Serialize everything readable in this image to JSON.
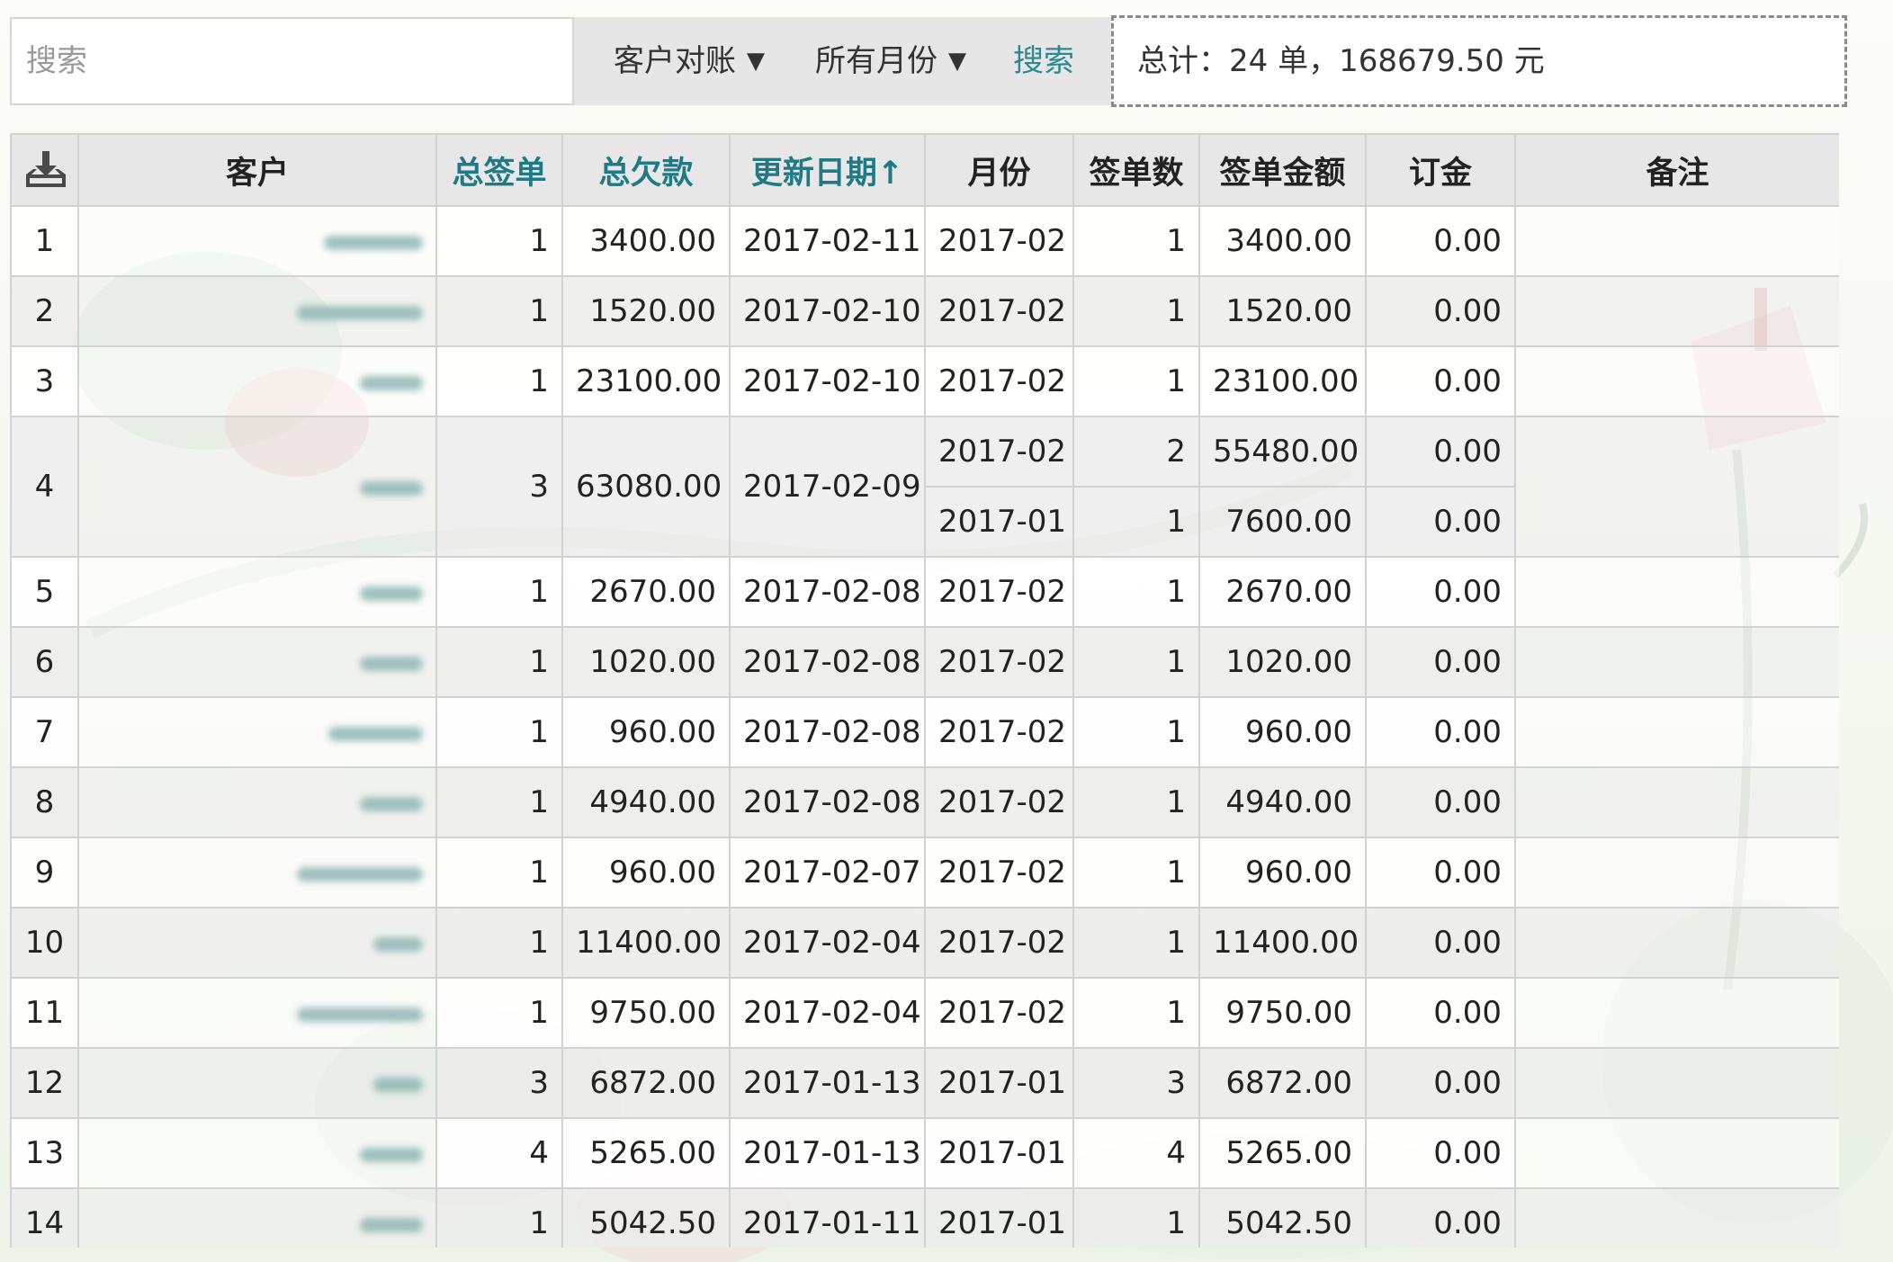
{
  "search": {
    "placeholder": "搜索",
    "button_label": "搜索"
  },
  "filters": {
    "type_label": "客户对账",
    "month_label": "所有月份",
    "arrow": "▼"
  },
  "summary": {
    "text": "总计：24 单，168679.50 元"
  },
  "colors": {
    "accent": "#1f7a85",
    "header_bg": "#e7e7e7",
    "row_alt": "#ececec"
  },
  "table": {
    "download_icon": "download-icon",
    "columns": [
      "客户",
      "总签单",
      "总欠款",
      "更新日期↑",
      "月份",
      "签单数",
      "签单金额",
      "订金",
      "备注"
    ],
    "rows": [
      {
        "idx": "1",
        "customer": "",
        "total_orders": "1",
        "total_debt": "3400.00",
        "updated": "2017-02-11",
        "months": [
          {
            "month": "2017-02",
            "orders": "1",
            "amount": "3400.00",
            "deposit": "0.00"
          }
        ],
        "note": ""
      },
      {
        "idx": "2",
        "customer": "",
        "total_orders": "1",
        "total_debt": "1520.00",
        "updated": "2017-02-10",
        "months": [
          {
            "month": "2017-02",
            "orders": "1",
            "amount": "1520.00",
            "deposit": "0.00"
          }
        ],
        "note": ""
      },
      {
        "idx": "3",
        "customer": "",
        "total_orders": "1",
        "total_debt": "23100.00",
        "updated": "2017-02-10",
        "months": [
          {
            "month": "2017-02",
            "orders": "1",
            "amount": "23100.00",
            "deposit": "0.00"
          }
        ],
        "note": ""
      },
      {
        "idx": "4",
        "customer": "",
        "total_orders": "3",
        "total_debt": "63080.00",
        "updated": "2017-02-09",
        "months": [
          {
            "month": "2017-02",
            "orders": "2",
            "amount": "55480.00",
            "deposit": "0.00"
          },
          {
            "month": "2017-01",
            "orders": "1",
            "amount": "7600.00",
            "deposit": "0.00"
          }
        ],
        "note": ""
      },
      {
        "idx": "5",
        "customer": "",
        "total_orders": "1",
        "total_debt": "2670.00",
        "updated": "2017-02-08",
        "months": [
          {
            "month": "2017-02",
            "orders": "1",
            "amount": "2670.00",
            "deposit": "0.00"
          }
        ],
        "note": ""
      },
      {
        "idx": "6",
        "customer": "",
        "total_orders": "1",
        "total_debt": "1020.00",
        "updated": "2017-02-08",
        "months": [
          {
            "month": "2017-02",
            "orders": "1",
            "amount": "1020.00",
            "deposit": "0.00"
          }
        ],
        "note": ""
      },
      {
        "idx": "7",
        "customer": "",
        "total_orders": "1",
        "total_debt": "960.00",
        "updated": "2017-02-08",
        "months": [
          {
            "month": "2017-02",
            "orders": "1",
            "amount": "960.00",
            "deposit": "0.00"
          }
        ],
        "note": ""
      },
      {
        "idx": "8",
        "customer": "",
        "total_orders": "1",
        "total_debt": "4940.00",
        "updated": "2017-02-08",
        "months": [
          {
            "month": "2017-02",
            "orders": "1",
            "amount": "4940.00",
            "deposit": "0.00"
          }
        ],
        "note": ""
      },
      {
        "idx": "9",
        "customer": "",
        "total_orders": "1",
        "total_debt": "960.00",
        "updated": "2017-02-07",
        "months": [
          {
            "month": "2017-02",
            "orders": "1",
            "amount": "960.00",
            "deposit": "0.00"
          }
        ],
        "note": ""
      },
      {
        "idx": "10",
        "customer": "",
        "total_orders": "1",
        "total_debt": "11400.00",
        "updated": "2017-02-04",
        "months": [
          {
            "month": "2017-02",
            "orders": "1",
            "amount": "11400.00",
            "deposit": "0.00"
          }
        ],
        "note": ""
      },
      {
        "idx": "11",
        "customer": "",
        "total_orders": "1",
        "total_debt": "9750.00",
        "updated": "2017-02-04",
        "months": [
          {
            "month": "2017-02",
            "orders": "1",
            "amount": "9750.00",
            "deposit": "0.00"
          }
        ],
        "note": ""
      },
      {
        "idx": "12",
        "customer": "",
        "total_orders": "3",
        "total_debt": "6872.00",
        "updated": "2017-01-13",
        "months": [
          {
            "month": "2017-01",
            "orders": "3",
            "amount": "6872.00",
            "deposit": "0.00"
          }
        ],
        "note": ""
      },
      {
        "idx": "13",
        "customer": "",
        "total_orders": "4",
        "total_debt": "5265.00",
        "updated": "2017-01-13",
        "months": [
          {
            "month": "2017-01",
            "orders": "4",
            "amount": "5265.00",
            "deposit": "0.00"
          }
        ],
        "note": ""
      },
      {
        "idx": "14",
        "customer": "",
        "total_orders": "1",
        "total_debt": "5042.50",
        "updated": "2017-01-11",
        "months": [
          {
            "month": "2017-01",
            "orders": "1",
            "amount": "5042.50",
            "deposit": "0.00"
          }
        ],
        "note": ""
      }
    ]
  }
}
